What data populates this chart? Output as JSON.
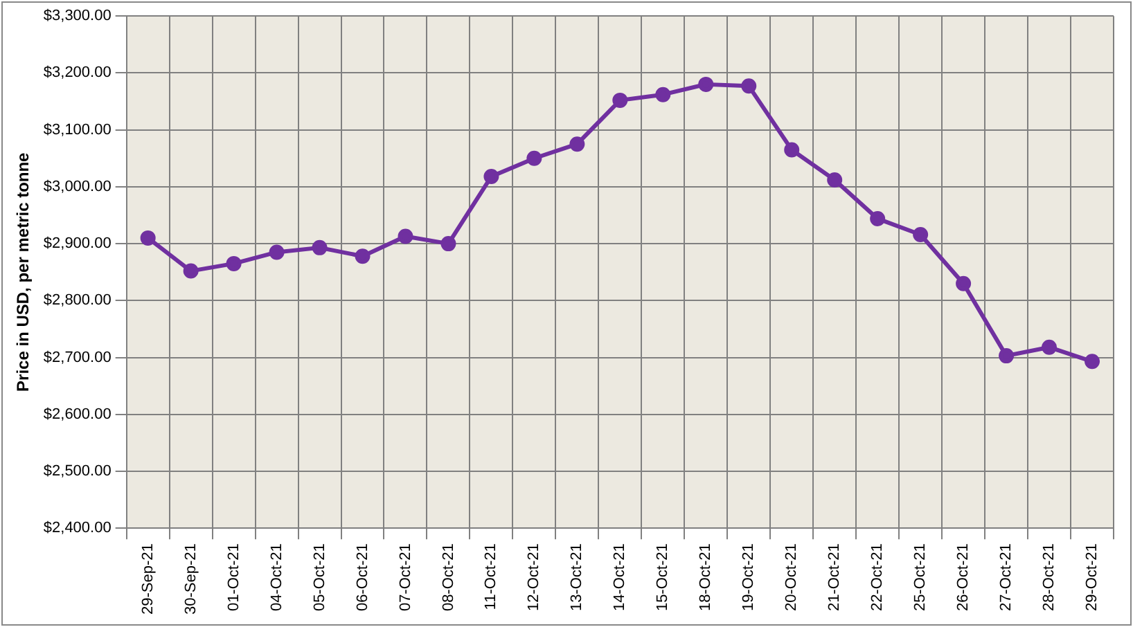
{
  "chart_data": {
    "type": "line",
    "ylabel": "Price in USD, per metric tonne",
    "categories": [
      "29-Sep-21",
      "30-Sep-21",
      "01-Oct-21",
      "04-Oct-21",
      "05-Oct-21",
      "06-Oct-21",
      "07-Oct-21",
      "08-Oct-21",
      "11-Oct-21",
      "12-Oct-21",
      "13-Oct-21",
      "14-Oct-21",
      "15-Oct-21",
      "18-Oct-21",
      "19-Oct-21",
      "20-Oct-21",
      "21-Oct-21",
      "22-Oct-21",
      "25-Oct-21",
      "26-Oct-21",
      "27-Oct-21",
      "28-Oct-21",
      "29-Oct-21"
    ],
    "series": [
      {
        "color": "#7030a0",
        "values": [
          2910,
          2852,
          2865,
          2885,
          2893,
          2878,
          2913,
          2900,
          3018,
          3050,
          3075,
          3152,
          3162,
          3180,
          3177,
          3065,
          3012,
          2944,
          2916,
          2830,
          2703,
          2718,
          2693
        ]
      }
    ],
    "ylim": [
      2400,
      3300
    ],
    "yticks": [
      {
        "value": 2400,
        "label": "$2,400.00"
      },
      {
        "value": 2500,
        "label": "$2,500.00"
      },
      {
        "value": 2600,
        "label": "$2,600.00"
      },
      {
        "value": 2700,
        "label": "$2,700.00"
      },
      {
        "value": 2800,
        "label": "$2,800.00"
      },
      {
        "value": 2900,
        "label": "$2,900.00"
      },
      {
        "value": 3000,
        "label": "$3,000.00"
      },
      {
        "value": 3100,
        "label": "$3,100.00"
      },
      {
        "value": 3200,
        "label": "$3,200.00"
      },
      {
        "value": 3300,
        "label": "$3,300.00"
      }
    ],
    "grid": true,
    "legend": false,
    "marker": "circle",
    "line_style": "solid"
  }
}
